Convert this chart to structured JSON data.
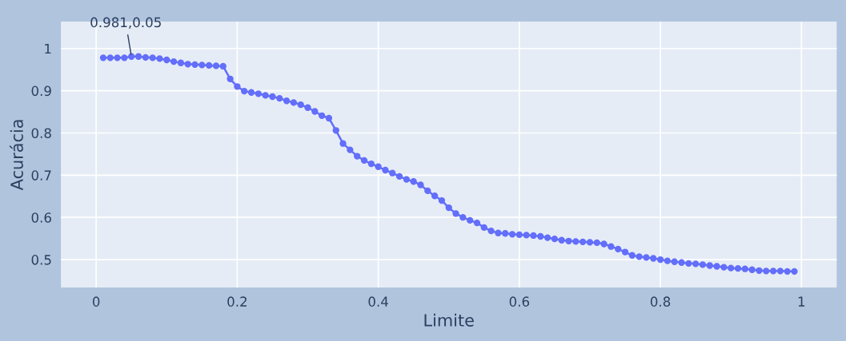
{
  "chart_data": {
    "type": "line",
    "xlabel": "Limite",
    "ylabel": "Acurácia",
    "x": [
      0.01,
      0.02,
      0.03,
      0.04,
      0.05,
      0.06,
      0.07,
      0.08,
      0.09,
      0.1,
      0.11,
      0.12,
      0.13,
      0.14,
      0.15,
      0.16,
      0.17,
      0.18,
      0.19,
      0.2,
      0.21,
      0.22,
      0.23,
      0.24,
      0.25,
      0.26,
      0.27,
      0.28,
      0.29,
      0.3,
      0.31,
      0.32,
      0.33,
      0.34,
      0.35,
      0.36,
      0.37,
      0.38,
      0.39,
      0.4,
      0.41,
      0.42,
      0.43,
      0.44,
      0.45,
      0.46,
      0.47,
      0.48,
      0.49,
      0.5,
      0.51,
      0.52,
      0.53,
      0.54,
      0.55,
      0.56,
      0.57,
      0.58,
      0.59,
      0.6,
      0.61,
      0.62,
      0.63,
      0.64,
      0.65,
      0.66,
      0.67,
      0.68,
      0.69,
      0.7,
      0.71,
      0.72,
      0.73,
      0.74,
      0.75,
      0.76,
      0.77,
      0.78,
      0.79,
      0.8,
      0.81,
      0.82,
      0.83,
      0.84,
      0.85,
      0.86,
      0.87,
      0.88,
      0.89,
      0.9,
      0.91,
      0.92,
      0.93,
      0.94,
      0.95,
      0.96,
      0.97,
      0.98,
      0.99
    ],
    "series": [
      {
        "color": "#636efa",
        "values": [
          0.978,
          0.978,
          0.978,
          0.978,
          0.981,
          0.981,
          0.979,
          0.978,
          0.976,
          0.973,
          0.969,
          0.966,
          0.963,
          0.962,
          0.961,
          0.96,
          0.959,
          0.958,
          0.928,
          0.91,
          0.899,
          0.896,
          0.893,
          0.889,
          0.886,
          0.882,
          0.876,
          0.872,
          0.867,
          0.86,
          0.851,
          0.841,
          0.835,
          0.806,
          0.775,
          0.76,
          0.745,
          0.735,
          0.727,
          0.72,
          0.712,
          0.705,
          0.697,
          0.69,
          0.685,
          0.677,
          0.663,
          0.651,
          0.64,
          0.623,
          0.609,
          0.6,
          0.593,
          0.587,
          0.576,
          0.568,
          0.563,
          0.562,
          0.56,
          0.559,
          0.558,
          0.557,
          0.555,
          0.552,
          0.549,
          0.546,
          0.544,
          0.543,
          0.542,
          0.541,
          0.54,
          0.537,
          0.531,
          0.525,
          0.518,
          0.51,
          0.507,
          0.505,
          0.503,
          0.5,
          0.497,
          0.495,
          0.493,
          0.491,
          0.49,
          0.488,
          0.486,
          0.484,
          0.482,
          0.48,
          0.479,
          0.478,
          0.476,
          0.474,
          0.473,
          0.473,
          0.473,
          0.472,
          0.472
        ]
      }
    ],
    "xlim": [
      -0.05,
      1.05
    ],
    "ylim": [
      0.434,
      1.064
    ],
    "xticks": [
      0,
      0.2,
      0.4,
      0.6,
      0.8,
      1
    ],
    "yticks": [
      0.5,
      0.6,
      0.7,
      0.8,
      0.9,
      1
    ],
    "annotations": [
      {
        "text": "0.981,0.05",
        "x": 0.05,
        "y": 0.981
      }
    ],
    "grid": true,
    "marker": "circle",
    "line_style": "solid"
  }
}
